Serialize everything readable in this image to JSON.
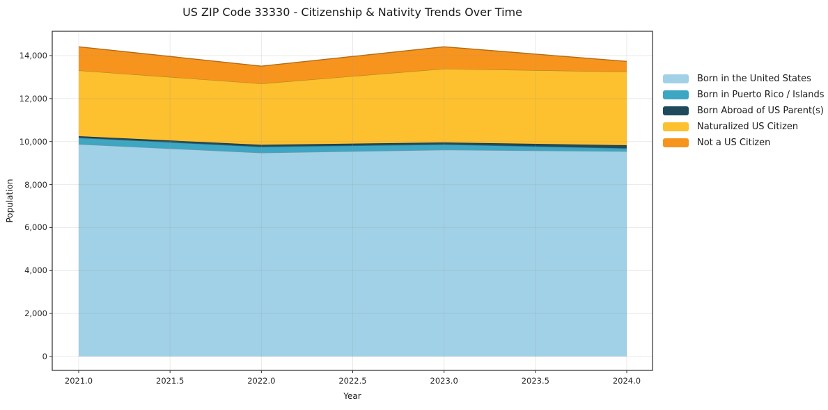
{
  "title": "US ZIP Code 33330 - Citizenship & Nativity Trends Over Time",
  "chart_data": {
    "type": "area",
    "stacked": true,
    "title": "US ZIP Code 33330 - Citizenship & Nativity Trends Over Time",
    "xlabel": "Year",
    "ylabel": "Population",
    "x": [
      2021,
      2022,
      2023,
      2024
    ],
    "series": [
      {
        "name": "Born in the United States",
        "color": "#a0d1e6",
        "values": [
          9880,
          9480,
          9620,
          9550
        ]
      },
      {
        "name": "Born in Puerto Rico / Islands",
        "color": "#3da6c2",
        "values": [
          300,
          280,
          250,
          140
        ]
      },
      {
        "name": "Born Abroad of US Parent(s)",
        "color": "#1f4a5c",
        "values": [
          70,
          90,
          90,
          140
        ]
      },
      {
        "name": "Naturalized US Citizen",
        "color": "#fdc02f",
        "values": [
          3060,
          2850,
          3430,
          3420
        ]
      },
      {
        "name": "Not a US Citizen",
        "color": "#f7941e",
        "values": [
          1100,
          810,
          1020,
          480
        ]
      }
    ],
    "stack_totals": [
      14410,
      13510,
      14410,
      13730
    ],
    "xlim": [
      2020.855,
      2024.145
    ],
    "ylim": [
      -650,
      15130
    ],
    "grid": true,
    "legend_position": "right",
    "xticks": [
      {
        "value": 2021.0,
        "label": "2021.0"
      },
      {
        "value": 2021.5,
        "label": "2021.5"
      },
      {
        "value": 2022.0,
        "label": "2022.0"
      },
      {
        "value": 2022.5,
        "label": "2022.5"
      },
      {
        "value": 2023.0,
        "label": "2023.0"
      },
      {
        "value": 2023.5,
        "label": "2023.5"
      },
      {
        "value": 2024.0,
        "label": "2024.0"
      }
    ],
    "yticks": [
      {
        "value": 0,
        "label": "0"
      },
      {
        "value": 2000,
        "label": "2,000"
      },
      {
        "value": 4000,
        "label": "4,000"
      },
      {
        "value": 6000,
        "label": "6,000"
      },
      {
        "value": 8000,
        "label": "8,000"
      },
      {
        "value": 10000,
        "label": "10,000"
      },
      {
        "value": 12000,
        "label": "12,000"
      },
      {
        "value": 14000,
        "label": "14,000"
      }
    ]
  }
}
